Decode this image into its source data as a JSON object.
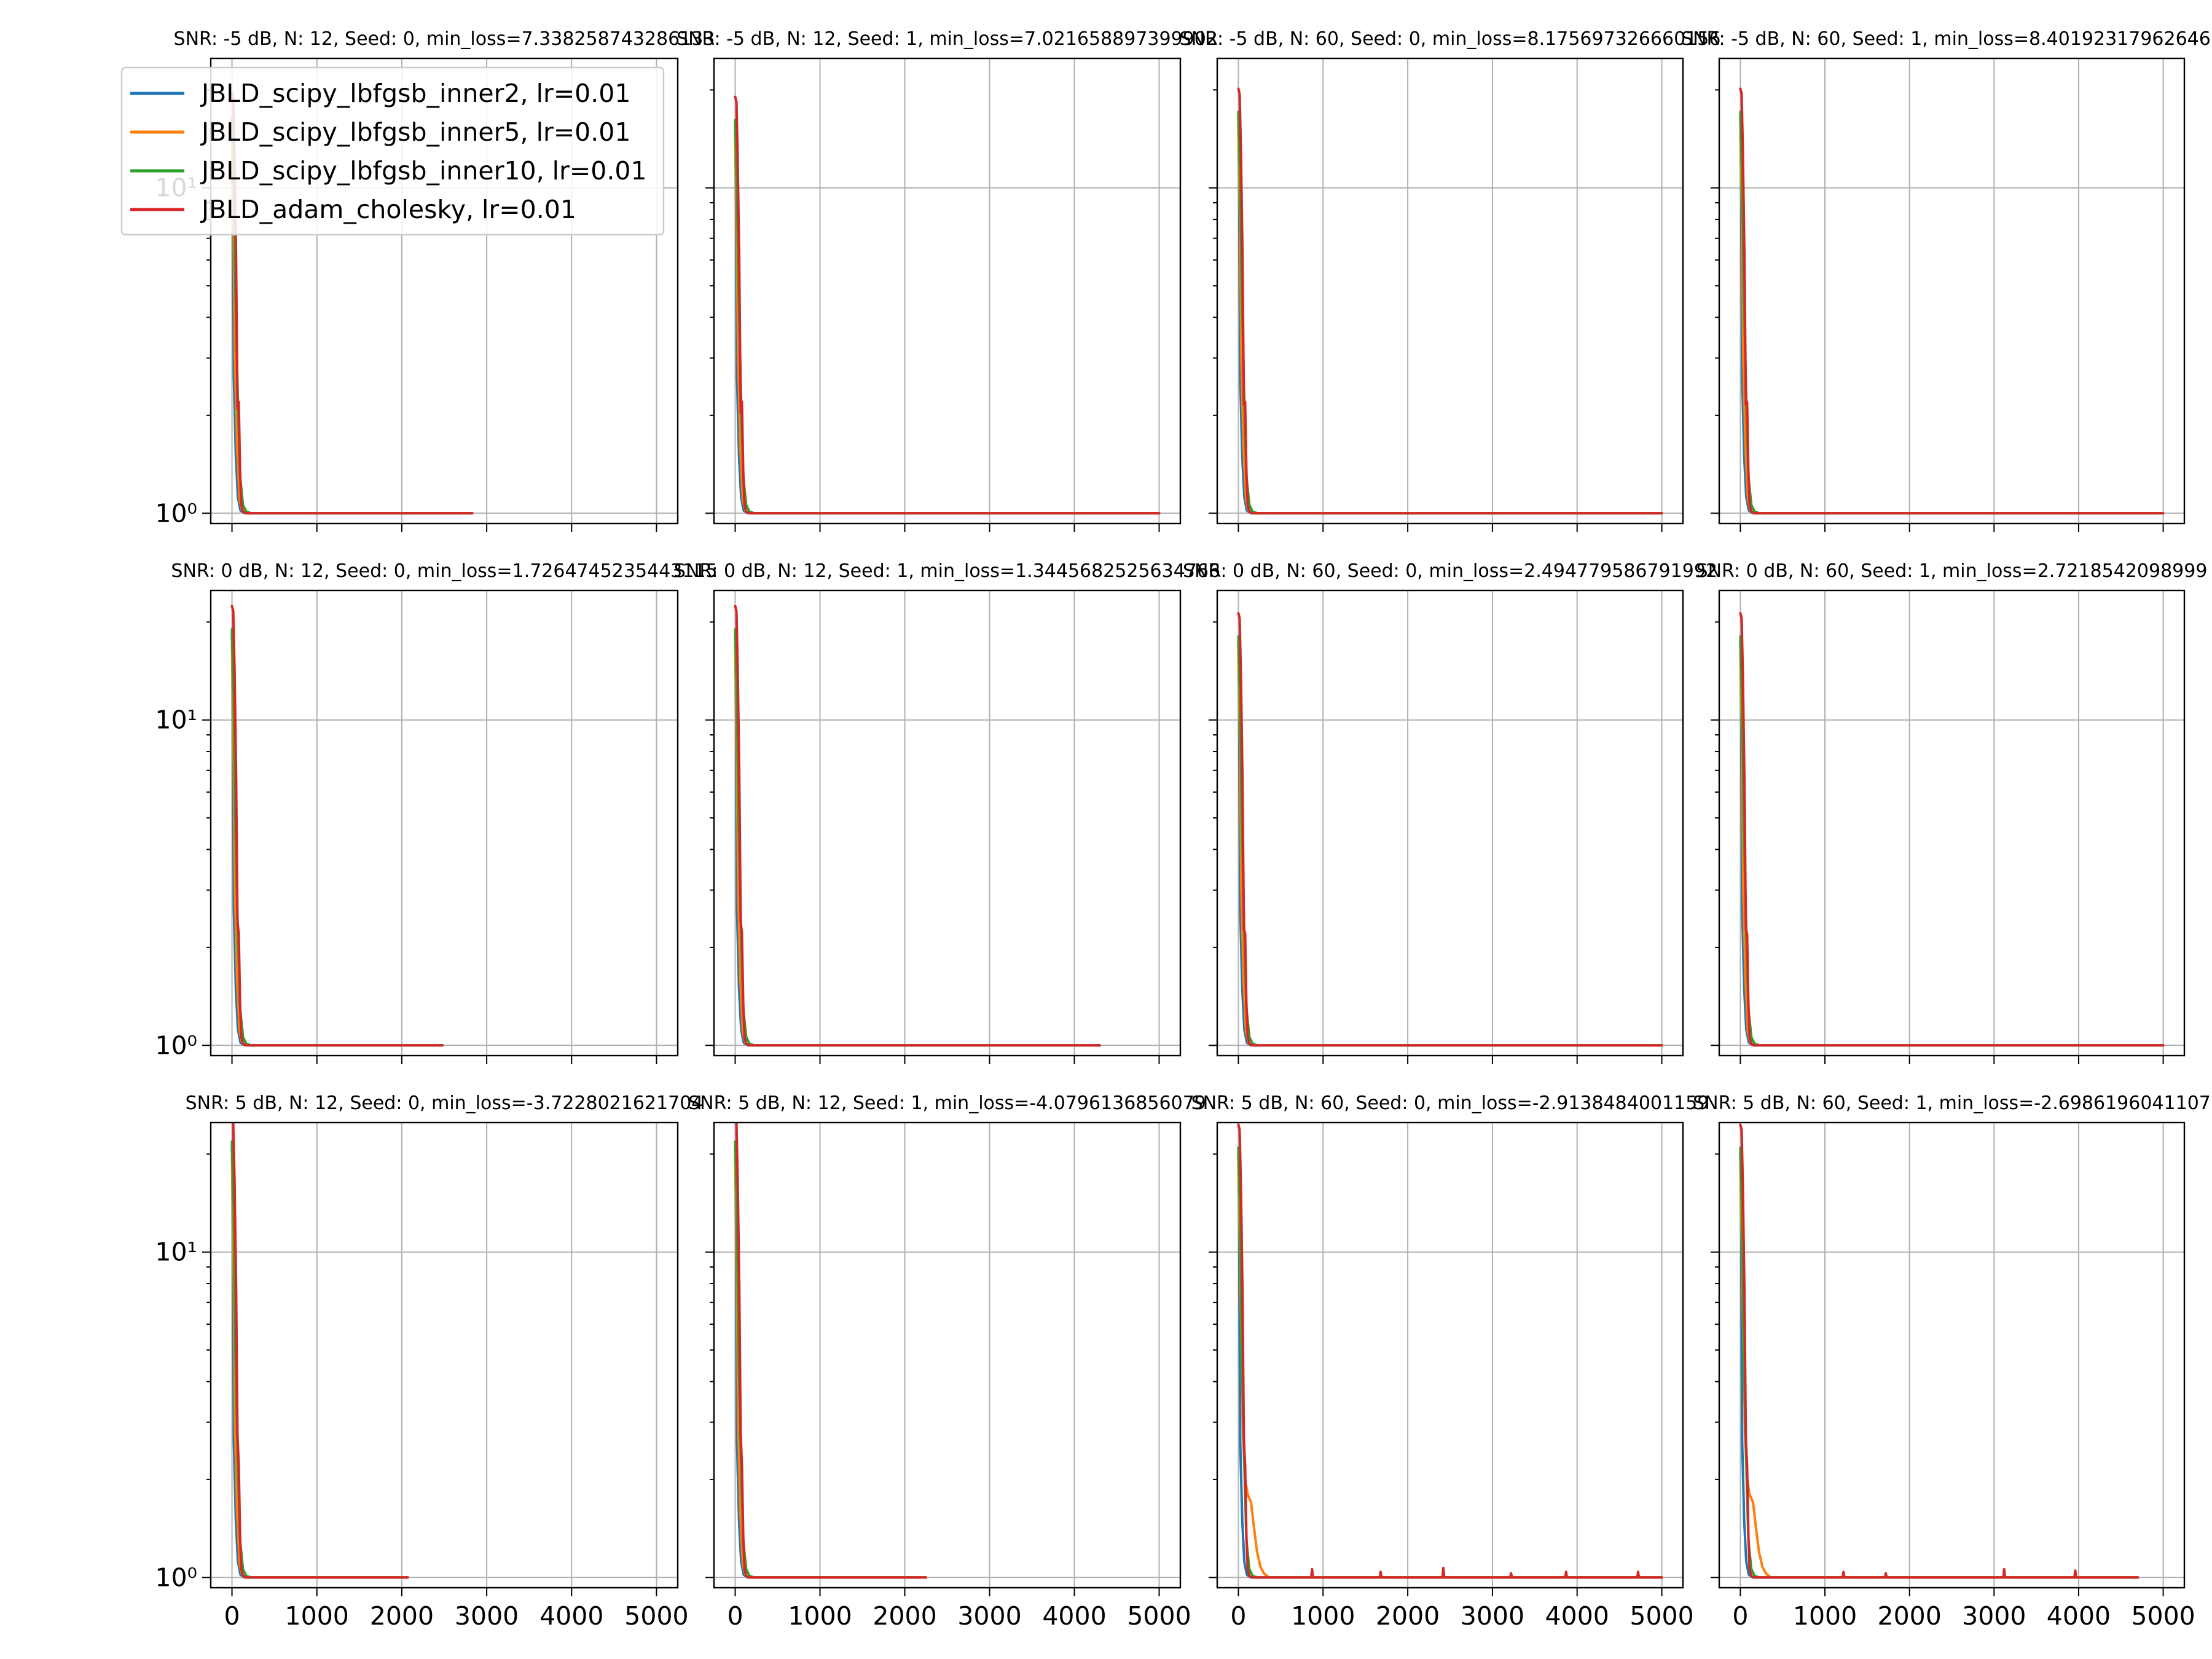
{
  "chart_data": {
    "type": "line",
    "layout": "3x4 grid of subplots",
    "y_scale": "log",
    "grid": true,
    "legend_placement": "upper-left of first subplot",
    "colors": {
      "JBLD_scipy_lbfgsb_inner2": "#1f77b4",
      "JBLD_scipy_lbfgsb_inner5": "#ff7f0e",
      "JBLD_scipy_lbfgsb_inner10": "#2ca02c",
      "JBLD_adam_cholesky": "#d62728"
    },
    "legend": [
      {
        "key": "inner2",
        "label": "JBLD_scipy_lbfgsb_inner2, lr=0.01"
      },
      {
        "key": "inner5",
        "label": "JBLD_scipy_lbfgsb_inner5, lr=0.01"
      },
      {
        "key": "inner10",
        "label": "JBLD_scipy_lbfgsb_inner10, lr=0.01"
      },
      {
        "key": "adam",
        "label": "JBLD_adam_cholesky, lr=0.01"
      }
    ],
    "xlim": [
      -250,
      5250
    ],
    "x_ticks": [
      0,
      1000,
      2000,
      3000,
      4000,
      5000
    ],
    "x_tick_labels": [
      "0",
      "1000",
      "2000",
      "3000",
      "4000",
      "5000"
    ],
    "y_ticks": [
      1,
      10
    ],
    "y_tick_labels": [
      "10⁰",
      "10¹"
    ],
    "rows": [
      {
        "ylim": [
          0.93,
          25
        ],
        "end_x": [
          2830,
          5000,
          5000,
          5000
        ]
      },
      {
        "ylim": [
          0.93,
          25
        ],
        "end_x": [
          2480,
          4300,
          5000,
          5000
        ]
      },
      {
        "ylim": [
          0.93,
          25
        ],
        "end_x": [
          2070,
          2250,
          5000,
          4700
        ]
      }
    ],
    "panels": [
      {
        "title": "SNR: -5 dB, N: 12, Seed: 0, min_loss=7.338258743286133",
        "peak": 17.5,
        "orange_tail": false,
        "spikes": []
      },
      {
        "title": "SNR: -5 dB, N: 12, Seed: 1, min_loss=7.021658897399902",
        "peak": 17.0,
        "orange_tail": false,
        "spikes": []
      },
      {
        "title": "SNR: -5 dB, N: 60, Seed: 0, min_loss=8.175697326660156",
        "peak": 18.0,
        "orange_tail": false,
        "spikes": []
      },
      {
        "title": "SNR: -5 dB, N: 60, Seed: 1, min_loss=8.401923179626465",
        "peak": 18.0,
        "orange_tail": false,
        "spikes": []
      },
      {
        "title": "SNR: 0 dB, N: 12, Seed: 0, min_loss=1.7264745235443115",
        "peak": 20.0,
        "orange_tail": false,
        "spikes": []
      },
      {
        "title": "SNR: 0 dB, N: 12, Seed: 1, min_loss=1.3445682525634766",
        "peak": 20.0,
        "orange_tail": false,
        "spikes": []
      },
      {
        "title": "SNR: 0 dB, N: 60, Seed: 0, min_loss=2.494779586791992",
        "peak": 19.0,
        "orange_tail": false,
        "spikes": []
      },
      {
        "title": "SNR: 0 dB, N: 60, Seed: 1, min_loss=2.7218542098999",
        "peak": 19.0,
        "orange_tail": false,
        "spikes": []
      },
      {
        "title": "SNR: 5 dB, N: 12, Seed: 0, min_loss=-3.7228021621704",
        "peak": 23.0,
        "orange_tail": false,
        "spikes": []
      },
      {
        "title": "SNR: 5 dB, N: 12, Seed: 1, min_loss=-4.0796136856079",
        "peak": 23.0,
        "orange_tail": false,
        "spikes": []
      },
      {
        "title": "SNR: 5 dB, N: 60, Seed: 0, min_loss=-2.9138484001159",
        "peak": 22.0,
        "orange_tail": true,
        "spikes": [
          [
            870,
            1.06
          ],
          [
            1680,
            1.04
          ],
          [
            2420,
            1.07
          ],
          [
            3220,
            1.03
          ],
          [
            3870,
            1.04
          ],
          [
            4720,
            1.04
          ]
        ]
      },
      {
        "title": "SNR: 5 dB, N: 60, Seed: 1, min_loss=-2.6986196041107",
        "peak": 22.0,
        "orange_tail": true,
        "spikes": [
          [
            1220,
            1.04
          ],
          [
            1720,
            1.03
          ],
          [
            3120,
            1.06
          ],
          [
            3960,
            1.05
          ]
        ]
      }
    ]
  }
}
